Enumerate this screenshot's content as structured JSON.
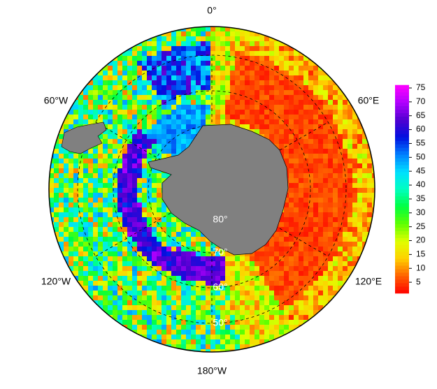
{
  "map": {
    "longitude_labels": [
      "0°",
      "60°E",
      "120°E",
      "180°W",
      "120°W",
      "60°W"
    ],
    "latitude_labels": [
      "80°",
      "70°",
      "60°",
      "50°"
    ],
    "colorbar": {
      "lim": [
        1,
        76
      ],
      "ticks": [
        5,
        10,
        15,
        20,
        25,
        30,
        35,
        40,
        45,
        50,
        55,
        60,
        65,
        70,
        75
      ],
      "colors": [
        "#ff0000",
        "#ff6000",
        "#ffd000",
        "#e0ff00",
        "#60ff00",
        "#00ff40",
        "#00ffc0",
        "#00e0ff",
        "#0080ff",
        "#0010e0",
        "#5000d0",
        "#b000ff",
        "#ff00ff"
      ]
    }
  }
}
